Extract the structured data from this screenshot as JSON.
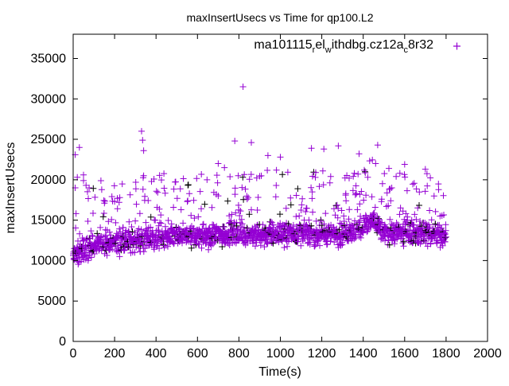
{
  "chart_data": {
    "type": "scatter",
    "title": "maxInsertUsecs vs Time for qp100.L2",
    "xlabel": "Time(s)",
    "ylabel": "maxInsertUsecs",
    "xlim": [
      0,
      2000
    ],
    "ylim": [
      0,
      38000
    ],
    "xticks": [
      0,
      200,
      400,
      600,
      800,
      1000,
      1200,
      1400,
      1600,
      1800,
      2000
    ],
    "yticks": [
      0,
      5000,
      10000,
      15000,
      20000,
      25000,
      30000,
      35000
    ],
    "grid": false,
    "legend_position": "top-right",
    "series": [
      {
        "name": "ma101115_rel_withdbg.cz12a_c8r32",
        "legend_parts": [
          "ma101115",
          "r",
          "el",
          "w",
          "ithdbg.cz12a",
          "c",
          "8r32"
        ],
        "color": "#9400d3",
        "marker": "plus",
        "x_range": [
          0,
          1800
        ],
        "sample_interval": 1,
        "baseline": [
          [
            0,
            10500
          ],
          [
            100,
            12000
          ],
          [
            300,
            12500
          ],
          [
            500,
            13000
          ],
          [
            900,
            13300
          ],
          [
            1300,
            13300
          ],
          [
            1400,
            14000
          ],
          [
            1450,
            15000
          ],
          [
            1500,
            13500
          ],
          [
            1800,
            13300
          ]
        ],
        "outliers": [
          [
            820,
            31500
          ],
          [
            330,
            26000
          ],
          [
            335,
            24900
          ],
          [
            340,
            23600
          ],
          [
            30,
            24000
          ],
          [
            10,
            23100
          ],
          [
            780,
            24800
          ],
          [
            860,
            24600
          ],
          [
            1470,
            24300
          ],
          [
            1280,
            24200
          ],
          [
            1150,
            23900
          ],
          [
            1380,
            23200
          ],
          [
            1210,
            23800
          ],
          [
            20,
            20300
          ],
          [
            50,
            20600
          ],
          [
            50,
            19900
          ],
          [
            10,
            19000
          ],
          [
            700,
            22000
          ],
          [
            730,
            21500
          ],
          [
            1460,
            22000
          ],
          [
            1700,
            21300
          ],
          [
            1000,
            22800
          ],
          [
            1600,
            21900
          ],
          [
            940,
            23000
          ]
        ]
      }
    ]
  }
}
